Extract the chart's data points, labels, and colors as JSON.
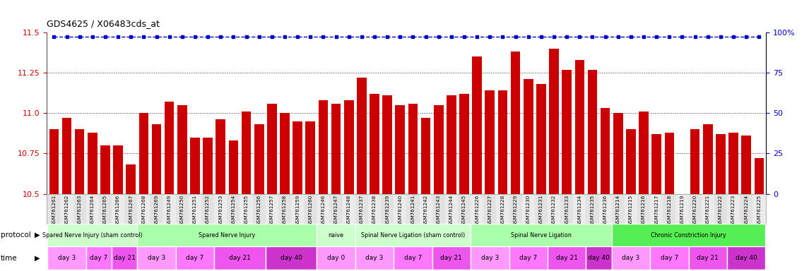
{
  "title": "GDS4625 / X06483cds_at",
  "bar_color": "#cc0000",
  "blue_dot_color": "#0000cc",
  "ylim_left": [
    10.5,
    11.5
  ],
  "ylim_right": [
    0,
    100
  ],
  "yticks_left": [
    10.5,
    10.75,
    11.0,
    11.25,
    11.5
  ],
  "yticks_right": [
    0,
    25,
    50,
    75,
    100
  ],
  "samples": [
    "GSM761261",
    "GSM761262",
    "GSM761263",
    "GSM761264",
    "GSM761265",
    "GSM761266",
    "GSM761267",
    "GSM761268",
    "GSM761269",
    "GSM761249",
    "GSM761250",
    "GSM761251",
    "GSM761252",
    "GSM761253",
    "GSM761254",
    "GSM761255",
    "GSM761256",
    "GSM761257",
    "GSM761258",
    "GSM761259",
    "GSM761260",
    "GSM761246",
    "GSM761247",
    "GSM761248",
    "GSM761237",
    "GSM761238",
    "GSM761239",
    "GSM761240",
    "GSM761241",
    "GSM761242",
    "GSM761243",
    "GSM761244",
    "GSM761245",
    "GSM761226",
    "GSM761227",
    "GSM761228",
    "GSM761229",
    "GSM761230",
    "GSM761231",
    "GSM761232",
    "GSM761233",
    "GSM761234",
    "GSM761235",
    "GSM761236",
    "GSM761214",
    "GSM761215",
    "GSM761216",
    "GSM761217",
    "GSM761218",
    "GSM761219",
    "GSM761220",
    "GSM761221",
    "GSM761222",
    "GSM761223",
    "GSM761224",
    "GSM761225"
  ],
  "bar_values": [
    10.9,
    10.97,
    10.9,
    10.88,
    10.8,
    10.8,
    10.68,
    11.0,
    10.93,
    11.07,
    11.05,
    10.85,
    10.85,
    10.96,
    10.83,
    11.01,
    10.93,
    11.06,
    11.0,
    10.95,
    10.95,
    11.08,
    11.06,
    11.08,
    11.22,
    11.12,
    11.11,
    11.05,
    11.06,
    10.97,
    11.05,
    11.11,
    11.12,
    11.35,
    11.14,
    11.14,
    11.38,
    11.21,
    11.18,
    11.4,
    11.27,
    11.33,
    11.27,
    11.03,
    11.0,
    10.9,
    11.01,
    10.87,
    10.88,
    10.5,
    10.9,
    10.93,
    10.87,
    10.88,
    10.86,
    10.72
  ],
  "protocol_groups": [
    {
      "label": "Spared Nerve Injury (sham control)",
      "start": 0,
      "end": 7,
      "color": "#ccffcc"
    },
    {
      "label": "Spared Nerve Injury",
      "start": 7,
      "end": 21,
      "color": "#aaffaa"
    },
    {
      "label": "naive",
      "start": 21,
      "end": 24,
      "color": "#ccffcc"
    },
    {
      "label": "Spinal Nerve Ligation (sham control)",
      "start": 24,
      "end": 33,
      "color": "#ccffcc"
    },
    {
      "label": "Spinal Nerve Ligation",
      "start": 33,
      "end": 44,
      "color": "#aaffaa"
    },
    {
      "label": "Chronic Constriction Injury",
      "start": 44,
      "end": 56,
      "color": "#55ee55"
    }
  ],
  "time_groups": [
    {
      "label": "day 3",
      "start": 0,
      "end": 3,
      "color": "#ff99ff"
    },
    {
      "label": "day 7",
      "start": 3,
      "end": 5,
      "color": "#ff77ff"
    },
    {
      "label": "day 21",
      "start": 5,
      "end": 7,
      "color": "#ee55ee"
    },
    {
      "label": "day 3",
      "start": 7,
      "end": 10,
      "color": "#ff99ff"
    },
    {
      "label": "day 7",
      "start": 10,
      "end": 13,
      "color": "#ff77ff"
    },
    {
      "label": "day 21",
      "start": 13,
      "end": 17,
      "color": "#ee55ee"
    },
    {
      "label": "day 40",
      "start": 17,
      "end": 21,
      "color": "#cc33cc"
    },
    {
      "label": "day 0",
      "start": 21,
      "end": 24,
      "color": "#ff99ff"
    },
    {
      "label": "day 3",
      "start": 24,
      "end": 27,
      "color": "#ff99ff"
    },
    {
      "label": "day 7",
      "start": 27,
      "end": 30,
      "color": "#ff77ff"
    },
    {
      "label": "day 21",
      "start": 30,
      "end": 33,
      "color": "#ee55ee"
    },
    {
      "label": "day 3",
      "start": 33,
      "end": 36,
      "color": "#ff99ff"
    },
    {
      "label": "day 7",
      "start": 36,
      "end": 39,
      "color": "#ff77ff"
    },
    {
      "label": "day 21",
      "start": 39,
      "end": 42,
      "color": "#ee55ee"
    },
    {
      "label": "day 40",
      "start": 42,
      "end": 44,
      "color": "#cc33cc"
    },
    {
      "label": "day 3",
      "start": 44,
      "end": 47,
      "color": "#ff99ff"
    },
    {
      "label": "day 7",
      "start": 47,
      "end": 50,
      "color": "#ff77ff"
    },
    {
      "label": "day 21",
      "start": 50,
      "end": 53,
      "color": "#ee55ee"
    },
    {
      "label": "day 40",
      "start": 53,
      "end": 56,
      "color": "#cc33cc"
    }
  ]
}
